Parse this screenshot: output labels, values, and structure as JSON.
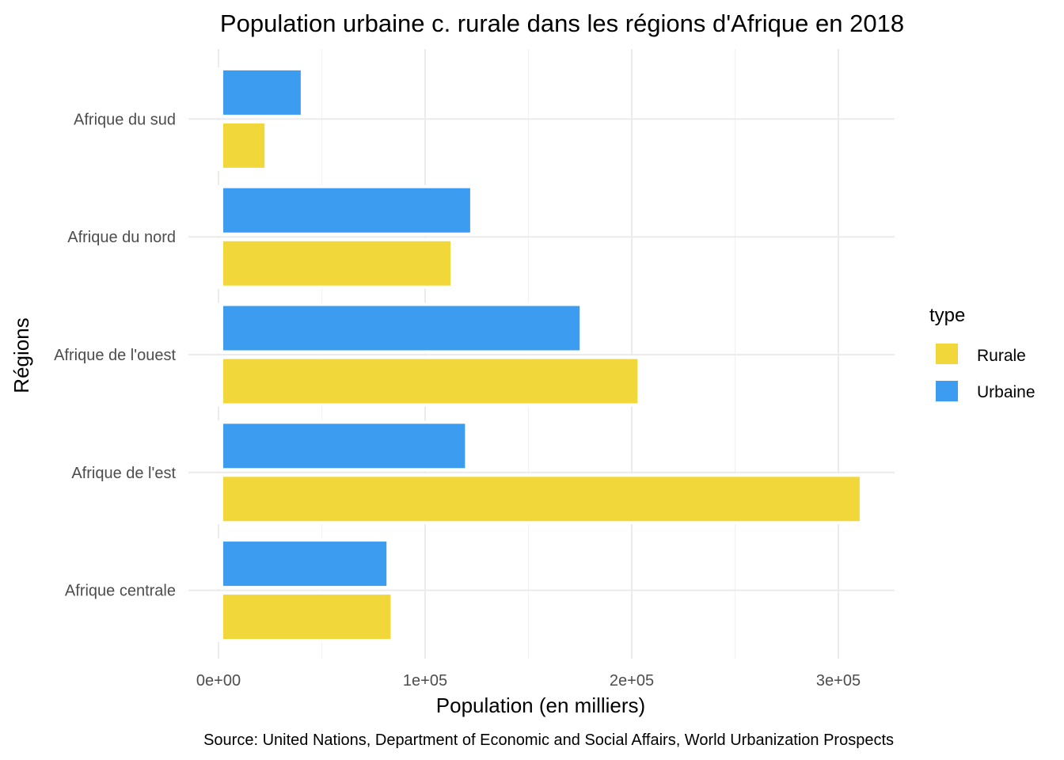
{
  "chart_data": {
    "type": "bar",
    "orientation": "horizontal",
    "title": "Population urbaine c. rurale dans les régions d'Afrique en 2018",
    "xlabel": "Population (en milliers)",
    "ylabel": "Régions",
    "caption": "Source: United Nations, Department of Economic and Social Affairs, World Urbanization Prospects",
    "categories": [
      "Afrique centrale",
      "Afrique de l'est",
      "Afrique de l'ouest",
      "Afrique du nord",
      "Afrique du sud"
    ],
    "series": [
      {
        "name": "Rurale",
        "color": "#F1D73A",
        "values": [
          81000,
          308000,
          200500,
          110000,
          20000
        ]
      },
      {
        "name": "Urbaine",
        "color": "#3B9CF0",
        "values": [
          79000,
          117000,
          172500,
          119500,
          37500
        ]
      }
    ],
    "xlim": [
      0,
      327000
    ],
    "x_ticks": [
      0,
      100000,
      200000,
      300000
    ],
    "x_tick_labels": [
      "0e+00",
      "1e+05",
      "2e+05",
      "3e+05"
    ],
    "grid": true,
    "legend": {
      "title": "type",
      "position": "right",
      "entries": [
        {
          "label": "Rurale",
          "color": "#F1D73A"
        },
        {
          "label": "Urbaine",
          "color": "#3B9CF0"
        }
      ]
    }
  }
}
